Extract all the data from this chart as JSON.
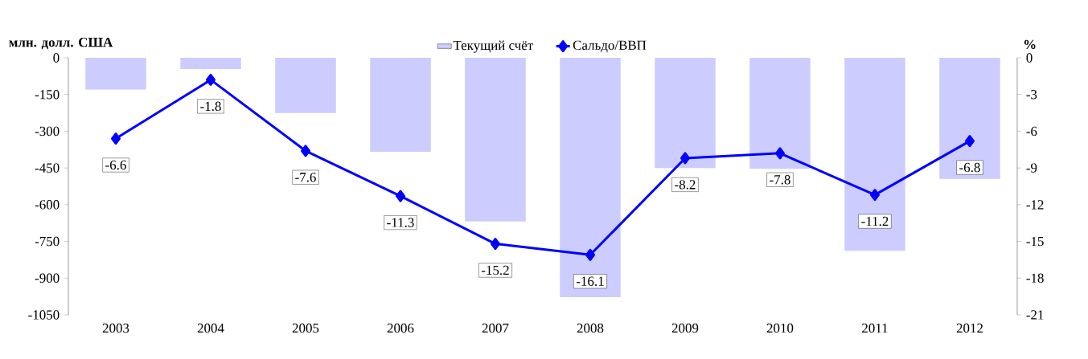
{
  "chart_data": {
    "type": "bar",
    "ylabel": "млн. долл. США",
    "y2label": "%",
    "categories": [
      "2003",
      "2004",
      "2005",
      "2006",
      "2007",
      "2008",
      "2009",
      "2010",
      "2011",
      "2012"
    ],
    "series": [
      {
        "name": "Текущий счёт",
        "color": "#ccccff",
        "values": [
          -130,
          -46,
          -226,
          -384,
          -669,
          -978,
          -450,
          -453,
          -788,
          -495
        ]
      },
      {
        "name": "Сальдо/ВВП",
        "type": "line",
        "axis": "y2",
        "color": "#0000ff",
        "marker": "diamond",
        "data_labels": true,
        "values": [
          -6.6,
          -1.8,
          -7.6,
          -11.3,
          -15.2,
          -16.1,
          -8.2,
          -7.8,
          -11.2,
          -6.8
        ]
      }
    ],
    "ylim": [
      -1050,
      0
    ],
    "yticks": [
      0,
      -150,
      -300,
      -450,
      -600,
      -750,
      -900,
      -1050
    ],
    "y2lim": [
      -21,
      0
    ],
    "y2ticks": [
      0,
      -3,
      -6,
      -9,
      -12,
      -15,
      -18,
      -21
    ],
    "legend": "top",
    "grid": false
  }
}
